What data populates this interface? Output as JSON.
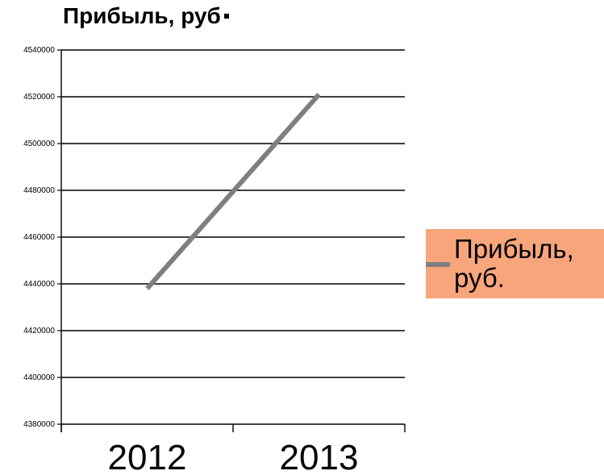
{
  "chart_data": {
    "type": "line",
    "title": "Прибыль, руб",
    "xlabel": "",
    "ylabel": "",
    "categories": [
      "2012",
      "2013"
    ],
    "series": [
      {
        "name": "Прибыль, руб.",
        "values": [
          4438000,
          4521000
        ],
        "color": "#7f7f7f"
      }
    ],
    "ylim": [
      4380000,
      4540000
    ],
    "yticks": [
      4380000,
      4400000,
      4420000,
      4440000,
      4460000,
      4480000,
      4500000,
      4520000,
      4540000
    ],
    "grid": true,
    "legend_position": "right",
    "legend_background": "#f9a57c"
  }
}
